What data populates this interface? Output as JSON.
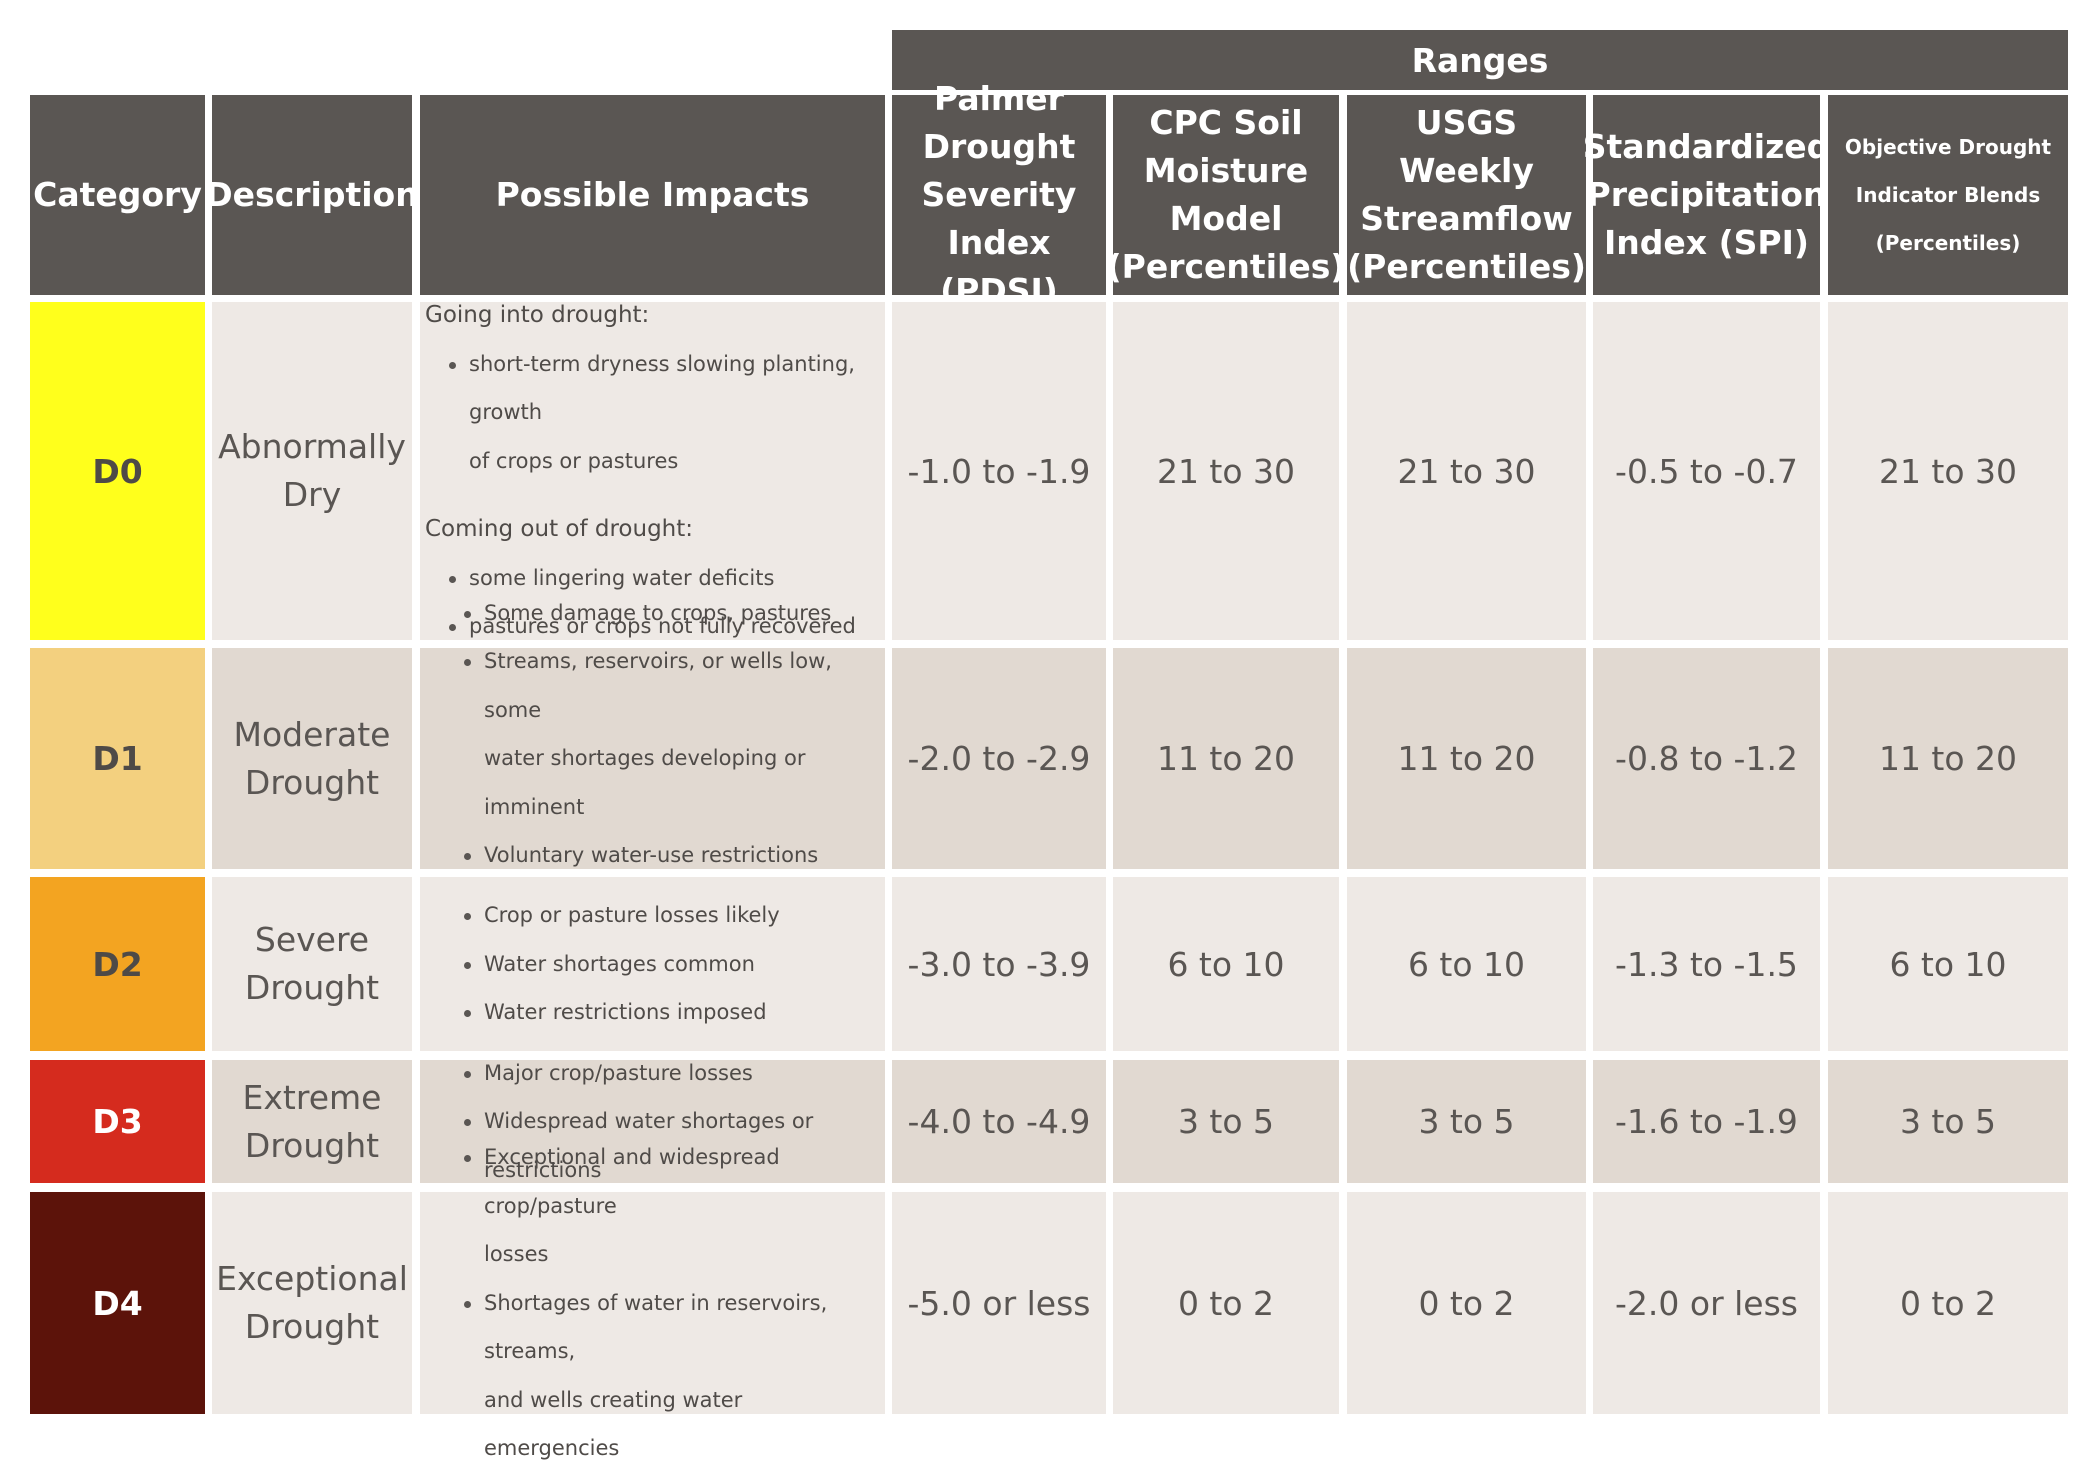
{
  "header": {
    "ranges": "Ranges",
    "category": "Category",
    "description": "Description",
    "impacts": "Possible Impacts",
    "pdsi": [
      "Palmer",
      "Drought",
      "Severity",
      "Index (PDSI)"
    ],
    "cpc": [
      "CPC Soil",
      "Moisture",
      "Model",
      "(Percentiles)"
    ],
    "usgs": [
      "USGS Weekly",
      "Streamflow",
      "(Percentiles)"
    ],
    "spi": [
      "Standardized",
      "Precipitation",
      "Index (SPI)"
    ],
    "odib": [
      "Objective Drought",
      "Indicator Blends",
      "(Percentiles)"
    ]
  },
  "colors": {
    "header_bg": "#5a5653",
    "row_light": "#eee9e5",
    "row_dark": "#e1d9d1",
    "d0": "#ffff1c",
    "d1": "#f3d07f",
    "d2": "#f3a421",
    "d3": "#d52b1e",
    "d4": "#5c130a"
  },
  "rows": [
    {
      "category": "D0",
      "description": [
        "Abnormally",
        "Dry"
      ],
      "impacts": {
        "going_heading": "Going into drought:",
        "going": [
          "short-term dryness slowing planting, growth",
          "of crops or pastures"
        ],
        "coming_heading": "Coming out of drought:",
        "coming": [
          "some lingering water deficits",
          "pastures or crops not fully recovered"
        ]
      },
      "pdsi": "-1.0 to -1.9",
      "cpc": "21 to 30",
      "usgs": "21 to 30",
      "spi": "-0.5 to -0.7",
      "odib": "21 to 30"
    },
    {
      "category": "D1",
      "description": [
        "Moderate",
        "Drought"
      ],
      "impacts": [
        [
          "Some damage to crops, pastures"
        ],
        [
          "Streams, reservoirs, or wells low, some",
          "water shortages developing or imminent"
        ],
        [
          "Voluntary water-use restrictions requested"
        ]
      ],
      "pdsi": "-2.0 to -2.9",
      "cpc": "11 to 20",
      "usgs": "11 to 20",
      "spi": "-0.8 to -1.2",
      "odib": "11 to 20"
    },
    {
      "category": "D2",
      "description": [
        "Severe",
        "Drought"
      ],
      "impacts": [
        [
          "Crop or pasture losses likely"
        ],
        [
          "Water shortages common"
        ],
        [
          "Water restrictions imposed"
        ]
      ],
      "pdsi": "-3.0 to -3.9",
      "cpc": "6 to 10",
      "usgs": "6 to 10",
      "spi": "-1.3 to -1.5",
      "odib": "6 to 10"
    },
    {
      "category": "D3",
      "description": [
        "Extreme",
        "Drought"
      ],
      "impacts": [
        [
          "Major crop/pasture losses"
        ],
        [
          "Widespread water shortages or restrictions"
        ]
      ],
      "pdsi": "-4.0 to -4.9",
      "cpc": "3 to 5",
      "usgs": "3 to 5",
      "spi": "-1.6 to -1.9",
      "odib": "3 to 5"
    },
    {
      "category": "D4",
      "description": [
        "Exceptional",
        "Drought"
      ],
      "impacts": [
        [
          "Exceptional and widespread crop/pasture",
          "losses"
        ],
        [
          "Shortages of water in reservoirs, streams,",
          "and wells creating water emergencies"
        ]
      ],
      "pdsi": "-5.0 or less",
      "cpc": "0 to 2",
      "usgs": "0 to 2",
      "spi": "-2.0 or less",
      "odib": "0 to 2"
    }
  ]
}
